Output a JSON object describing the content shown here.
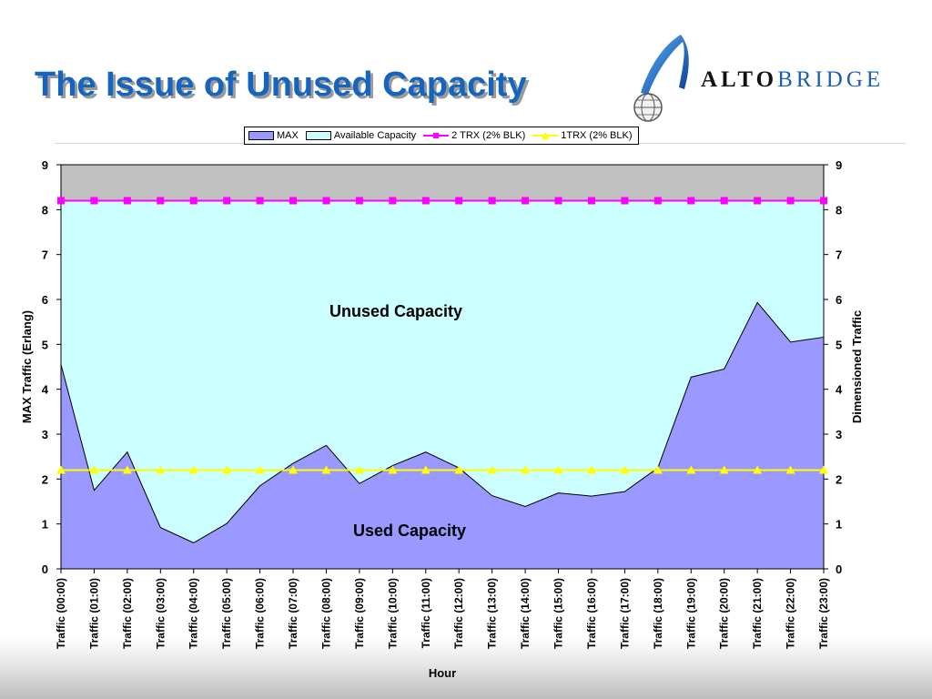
{
  "slide": {
    "title": "The Issue of Unused Capacity",
    "logo": {
      "part1": "ALTO",
      "part2": "BRIDGE"
    }
  },
  "colors": {
    "title": "#1565c0",
    "max_fill": "#9999ff",
    "available_fill": "#ccffff",
    "over_fill": "#c0c0c0",
    "trx2": "#ff00ff",
    "trx1": "#ffff00"
  },
  "chart_data": {
    "type": "area",
    "categories": [
      "Traffic (00:00)",
      "Traffic (01:00)",
      "Traffic (02:00)",
      "Traffic (03:00)",
      "Traffic (04:00)",
      "Traffic (05:00)",
      "Traffic (06:00)",
      "Traffic (07:00)",
      "Traffic (08:00)",
      "Traffic (09:00)",
      "Traffic (10:00)",
      "Traffic (11:00)",
      "Traffic (12:00)",
      "Traffic (13:00)",
      "Traffic (14:00)",
      "Traffic (15:00)",
      "Traffic (16:00)",
      "Traffic (17:00)",
      "Traffic (18:00)",
      "Traffic (19:00)",
      "Traffic (20:00)",
      "Traffic (21:00)",
      "Traffic (22:00)",
      "Traffic (23:00)"
    ],
    "series": [
      {
        "name": "MAX",
        "kind": "area",
        "color": "#9999ff",
        "values": [
          4.55,
          1.75,
          2.6,
          0.92,
          0.58,
          1.01,
          1.85,
          2.35,
          2.75,
          1.9,
          2.3,
          2.6,
          2.25,
          1.63,
          1.39,
          1.69,
          1.62,
          1.72,
          2.25,
          4.27,
          4.45,
          5.93,
          5.05,
          5.16
        ]
      },
      {
        "name": "Available Capacity",
        "kind": "area",
        "color": "#ccffff",
        "values": [
          8.2,
          8.2,
          8.2,
          8.2,
          8.2,
          8.2,
          8.2,
          8.2,
          8.2,
          8.2,
          8.2,
          8.2,
          8.2,
          8.2,
          8.2,
          8.2,
          8.2,
          8.2,
          8.2,
          8.2,
          8.2,
          8.2,
          8.2,
          8.2
        ]
      },
      {
        "name": "2 TRX (2% BLK)",
        "kind": "line",
        "marker": "square",
        "color": "#ff00ff",
        "values": [
          8.2,
          8.2,
          8.2,
          8.2,
          8.2,
          8.2,
          8.2,
          8.2,
          8.2,
          8.2,
          8.2,
          8.2,
          8.2,
          8.2,
          8.2,
          8.2,
          8.2,
          8.2,
          8.2,
          8.2,
          8.2,
          8.2,
          8.2,
          8.2
        ]
      },
      {
        "name": "1TRX (2% BLK)",
        "kind": "line",
        "marker": "triangle",
        "color": "#ffff00",
        "values": [
          2.2,
          2.2,
          2.2,
          2.2,
          2.2,
          2.2,
          2.2,
          2.2,
          2.2,
          2.2,
          2.2,
          2.2,
          2.2,
          2.2,
          2.2,
          2.2,
          2.2,
          2.2,
          2.2,
          2.2,
          2.2,
          2.2,
          2.2,
          2.2
        ]
      }
    ],
    "xlabel": "Hour",
    "ylabel": "MAX Traffic (Erlang)",
    "y2label": "Dimensioned Traffic",
    "ylim": [
      0,
      9
    ],
    "y2lim": [
      0,
      9
    ],
    "yticks": [
      0,
      1,
      2,
      3,
      4,
      5,
      6,
      7,
      8,
      9
    ],
    "annotations": [
      "Unused Capacity",
      "Used Capacity"
    ],
    "legend": "top",
    "grid": false
  }
}
